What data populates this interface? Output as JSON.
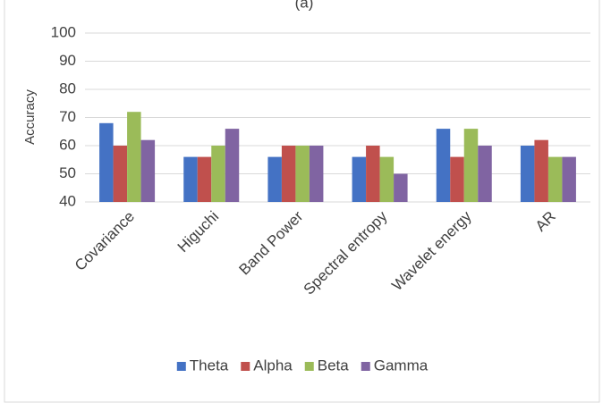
{
  "chart_data": {
    "type": "bar",
    "title": "(a)",
    "y_label": "Accuracy",
    "categories": [
      "Covariance",
      "Higuchi",
      "Band Power",
      "Spectral entropy",
      "Wavelet energy",
      "AR"
    ],
    "series": [
      {
        "name": "Theta",
        "color": "#4472c4",
        "values": [
          68,
          56,
          56,
          56,
          66,
          60
        ]
      },
      {
        "name": "Alpha",
        "color": "#c0504d",
        "values": [
          60,
          56,
          60,
          60,
          56,
          62
        ]
      },
      {
        "name": "Beta",
        "color": "#9bbb59",
        "values": [
          72,
          60,
          60,
          56,
          66,
          56
        ]
      },
      {
        "name": "Gamma",
        "color": "#8064a2",
        "values": [
          62,
          66,
          60,
          50,
          60,
          56
        ]
      }
    ],
    "ylim": [
      40,
      100
    ],
    "yticks": [
      40,
      50,
      60,
      70,
      80,
      90,
      100
    ],
    "grid": true,
    "legend": "bottom"
  }
}
